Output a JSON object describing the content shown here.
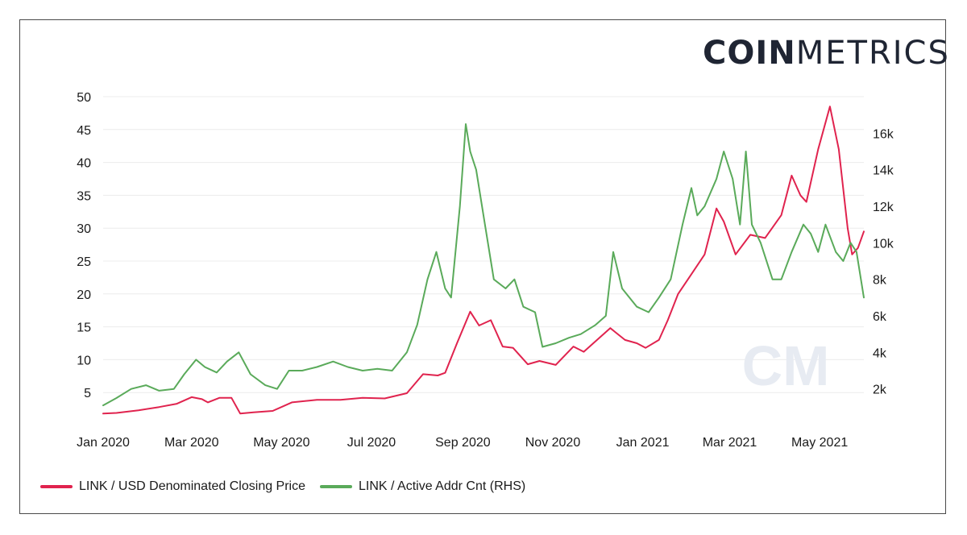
{
  "brand": {
    "logo_bold": "COIN",
    "logo_light": "METRICS",
    "watermark": "CM"
  },
  "chart_data": {
    "type": "line",
    "x_axis": {
      "type": "date",
      "range": [
        "2020-01-01",
        "2021-05-31"
      ],
      "tick_labels": [
        "Jan 2020",
        "Mar 2020",
        "May 2020",
        "Jul 2020",
        "Sep 2020",
        "Nov 2020",
        "Jan 2021",
        "Mar 2021",
        "May 2021"
      ],
      "tick_dates": [
        "2020-01-01",
        "2020-03-01",
        "2020-05-01",
        "2020-07-01",
        "2020-09-01",
        "2020-11-01",
        "2021-01-01",
        "2021-03-01",
        "2021-05-01"
      ]
    },
    "y_left": {
      "range": [
        0,
        50
      ],
      "tick_labels": [
        "5",
        "10",
        "15",
        "20",
        "25",
        "30",
        "35",
        "40",
        "45",
        "50"
      ],
      "tick_values": [
        5,
        10,
        15,
        20,
        25,
        30,
        35,
        40,
        45,
        50
      ]
    },
    "y_right": {
      "range": [
        0,
        18000
      ],
      "tick_labels": [
        "2k",
        "4k",
        "6k",
        "8k",
        "10k",
        "12k",
        "14k",
        "16k"
      ],
      "tick_values": [
        2000,
        4000,
        6000,
        8000,
        10000,
        12000,
        14000,
        16000
      ]
    },
    "grid": true,
    "legend_position": "bottom-left",
    "series": [
      {
        "name": "LINK / USD Denominated Closing Price",
        "axis": "left",
        "color": "#e0234e",
        "points": [
          [
            "2020-01-01",
            1.8
          ],
          [
            "2020-01-10",
            1.9
          ],
          [
            "2020-01-25",
            2.3
          ],
          [
            "2020-02-08",
            2.8
          ],
          [
            "2020-02-20",
            3.3
          ],
          [
            "2020-03-01",
            4.3
          ],
          [
            "2020-03-08",
            4.0
          ],
          [
            "2020-03-12",
            3.5
          ],
          [
            "2020-03-20",
            4.2
          ],
          [
            "2020-03-28",
            4.2
          ],
          [
            "2020-04-03",
            1.8
          ],
          [
            "2020-04-12",
            2.0
          ],
          [
            "2020-04-25",
            2.2
          ],
          [
            "2020-05-08",
            3.5
          ],
          [
            "2020-05-25",
            3.9
          ],
          [
            "2020-06-10",
            3.9
          ],
          [
            "2020-06-25",
            4.2
          ],
          [
            "2020-07-10",
            4.1
          ],
          [
            "2020-07-25",
            4.9
          ],
          [
            "2020-08-05",
            7.8
          ],
          [
            "2020-08-15",
            7.6
          ],
          [
            "2020-08-20",
            8.0
          ],
          [
            "2020-08-28",
            12.5
          ],
          [
            "2020-09-06",
            17.3
          ],
          [
            "2020-09-12",
            15.2
          ],
          [
            "2020-09-20",
            16.0
          ],
          [
            "2020-09-28",
            12.0
          ],
          [
            "2020-10-05",
            11.8
          ],
          [
            "2020-10-15",
            9.3
          ],
          [
            "2020-10-23",
            9.8
          ],
          [
            "2020-11-03",
            9.2
          ],
          [
            "2020-11-15",
            12.0
          ],
          [
            "2020-11-22",
            11.2
          ],
          [
            "2020-12-01",
            13.0
          ],
          [
            "2020-12-10",
            14.8
          ],
          [
            "2020-12-20",
            13.0
          ],
          [
            "2020-12-28",
            12.5
          ],
          [
            "2021-01-03",
            11.8
          ],
          [
            "2021-01-12",
            13.0
          ],
          [
            "2021-01-18",
            16.0
          ],
          [
            "2021-01-25",
            20.0
          ],
          [
            "2021-02-03",
            23.0
          ],
          [
            "2021-02-12",
            26.0
          ],
          [
            "2021-02-20",
            33.0
          ],
          [
            "2021-02-25",
            31.0
          ],
          [
            "2021-03-05",
            26.0
          ],
          [
            "2021-03-15",
            29.0
          ],
          [
            "2021-03-25",
            28.5
          ],
          [
            "2021-04-05",
            32.0
          ],
          [
            "2021-04-12",
            38.0
          ],
          [
            "2021-04-18",
            35.0
          ],
          [
            "2021-04-22",
            34.0
          ],
          [
            "2021-04-30",
            42.0
          ],
          [
            "2021-05-08",
            48.5
          ],
          [
            "2021-05-14",
            42.0
          ],
          [
            "2021-05-20",
            30.0
          ],
          [
            "2021-05-23",
            26.0
          ],
          [
            "2021-05-27",
            27.0
          ],
          [
            "2021-05-31",
            29.5
          ]
        ]
      },
      {
        "name": "LINK / Active Addr Cnt (RHS)",
        "axis": "right",
        "color": "#5aaa5a",
        "points": [
          [
            "2020-01-01",
            1100
          ],
          [
            "2020-01-10",
            1500
          ],
          [
            "2020-01-20",
            2000
          ],
          [
            "2020-01-30",
            2200
          ],
          [
            "2020-02-08",
            1900
          ],
          [
            "2020-02-18",
            2000
          ],
          [
            "2020-02-25",
            2800
          ],
          [
            "2020-03-04",
            3600
          ],
          [
            "2020-03-10",
            3200
          ],
          [
            "2020-03-18",
            2900
          ],
          [
            "2020-03-25",
            3500
          ],
          [
            "2020-04-02",
            4000
          ],
          [
            "2020-04-10",
            2800
          ],
          [
            "2020-04-20",
            2200
          ],
          [
            "2020-04-28",
            2000
          ],
          [
            "2020-05-06",
            3000
          ],
          [
            "2020-05-15",
            3000
          ],
          [
            "2020-05-25",
            3200
          ],
          [
            "2020-06-05",
            3500
          ],
          [
            "2020-06-15",
            3200
          ],
          [
            "2020-06-25",
            3000
          ],
          [
            "2020-07-05",
            3100
          ],
          [
            "2020-07-15",
            3000
          ],
          [
            "2020-07-25",
            4000
          ],
          [
            "2020-08-01",
            5500
          ],
          [
            "2020-08-08",
            8000
          ],
          [
            "2020-08-14",
            9500
          ],
          [
            "2020-08-20",
            7500
          ],
          [
            "2020-08-24",
            7000
          ],
          [
            "2020-08-30",
            12000
          ],
          [
            "2020-09-03",
            16500
          ],
          [
            "2020-09-06",
            15000
          ],
          [
            "2020-09-10",
            14000
          ],
          [
            "2020-09-16",
            11000
          ],
          [
            "2020-09-22",
            8000
          ],
          [
            "2020-09-30",
            7500
          ],
          [
            "2020-10-06",
            8000
          ],
          [
            "2020-10-12",
            6500
          ],
          [
            "2020-10-20",
            6200
          ],
          [
            "2020-10-25",
            4300
          ],
          [
            "2020-11-03",
            4500
          ],
          [
            "2020-11-12",
            4800
          ],
          [
            "2020-11-20",
            5000
          ],
          [
            "2020-11-30",
            5500
          ],
          [
            "2020-12-07",
            6000
          ],
          [
            "2020-12-12",
            9500
          ],
          [
            "2020-12-18",
            7500
          ],
          [
            "2020-12-28",
            6500
          ],
          [
            "2021-01-05",
            6200
          ],
          [
            "2021-01-12",
            7000
          ],
          [
            "2021-01-20",
            8000
          ],
          [
            "2021-01-28",
            11000
          ],
          [
            "2021-02-03",
            13000
          ],
          [
            "2021-02-07",
            11500
          ],
          [
            "2021-02-12",
            12000
          ],
          [
            "2021-02-20",
            13500
          ],
          [
            "2021-02-25",
            15000
          ],
          [
            "2021-03-03",
            13500
          ],
          [
            "2021-03-08",
            11000
          ],
          [
            "2021-03-12",
            15000
          ],
          [
            "2021-03-16",
            11000
          ],
          [
            "2021-03-22",
            10000
          ],
          [
            "2021-03-30",
            8000
          ],
          [
            "2021-04-05",
            8000
          ],
          [
            "2021-04-12",
            9500
          ],
          [
            "2021-04-20",
            11000
          ],
          [
            "2021-04-25",
            10500
          ],
          [
            "2021-04-30",
            9500
          ],
          [
            "2021-05-05",
            11000
          ],
          [
            "2021-05-12",
            9500
          ],
          [
            "2021-05-17",
            9000
          ],
          [
            "2021-05-22",
            10000
          ],
          [
            "2021-05-26",
            9500
          ],
          [
            "2021-05-31",
            7000
          ]
        ]
      }
    ]
  }
}
